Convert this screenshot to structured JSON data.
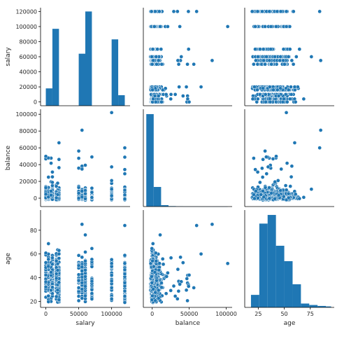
{
  "chart_data": {
    "type": "pairplot",
    "variables": [
      "salary",
      "balance",
      "age"
    ],
    "colors": {
      "fill": "#1f77b4",
      "edge": "#ffffff",
      "frame": "#000000",
      "text": "#262626"
    },
    "axes": {
      "salary": {
        "range": [
          -8000,
          128000
        ],
        "ticks": [
          0,
          50000,
          100000
        ],
        "tick_labels": [
          "0",
          "50000",
          "100000"
        ]
      },
      "balance": {
        "range": [
          -12000,
          108000
        ],
        "ticks": [
          0,
          50000,
          100000
        ],
        "tick_labels": [
          "0",
          "50000",
          "100000"
        ]
      },
      "age": {
        "range": [
          12,
          98
        ],
        "ticks": [
          25,
          50,
          75
        ],
        "tick_labels": [
          "25",
          "50",
          "75"
        ]
      }
    },
    "y_axes": {
      "salary": {
        "range": [
          -5000,
          125000
        ],
        "ticks": [
          0,
          20000,
          40000,
          60000,
          80000,
          100000,
          120000
        ],
        "tick_labels": [
          "0",
          "20000",
          "40000",
          "60000",
          "80000",
          "100000",
          "120000"
        ]
      },
      "balance": {
        "range": [
          -10000,
          106000
        ],
        "ticks": [
          0,
          20000,
          40000,
          60000,
          80000,
          100000
        ],
        "tick_labels": [
          "0",
          "20000",
          "40000",
          "60000",
          "80000",
          "100000"
        ]
      },
      "age": {
        "range": [
          15,
          97
        ],
        "ticks": [
          20,
          40,
          60,
          80
        ],
        "tick_labels": [
          "20",
          "40",
          "60",
          "80"
        ]
      }
    },
    "histograms": {
      "salary": {
        "edges": [
          0,
          10000,
          20000,
          50000,
          60000,
          70000,
          100000,
          110000,
          120000
        ],
        "counts": [
          18000,
          97000,
          null,
          64000,
          120000,
          null,
          83000,
          9000
        ],
        "count_ticks": [
          0,
          20000,
          40000,
          60000,
          80000,
          100000,
          120000
        ]
      },
      "balance": {
        "edges": [
          -8000,
          2000,
          12000,
          22000,
          32000,
          42000,
          52000,
          62000,
          72000,
          82000,
          92000,
          102000
        ],
        "counts": [
          0.99,
          0.21,
          0.015,
          0.005,
          0.003,
          0.001,
          0.001,
          0.0005,
          0.0003,
          0.0002,
          0.0002
        ]
      },
      "age": {
        "edges": [
          18,
          26,
          34,
          42,
          50,
          58,
          66,
          74,
          82,
          90,
          95
        ],
        "counts": [
          0.13,
          0.87,
          0.96,
          0.64,
          0.48,
          0.24,
          0.04,
          0.025,
          0.015,
          0.01
        ]
      }
    },
    "salary_levels": [
      0,
      4000,
      8000,
      10000,
      16000,
      18000,
      20000,
      50000,
      55000,
      60000,
      70000,
      100000,
      120000
    ]
  }
}
